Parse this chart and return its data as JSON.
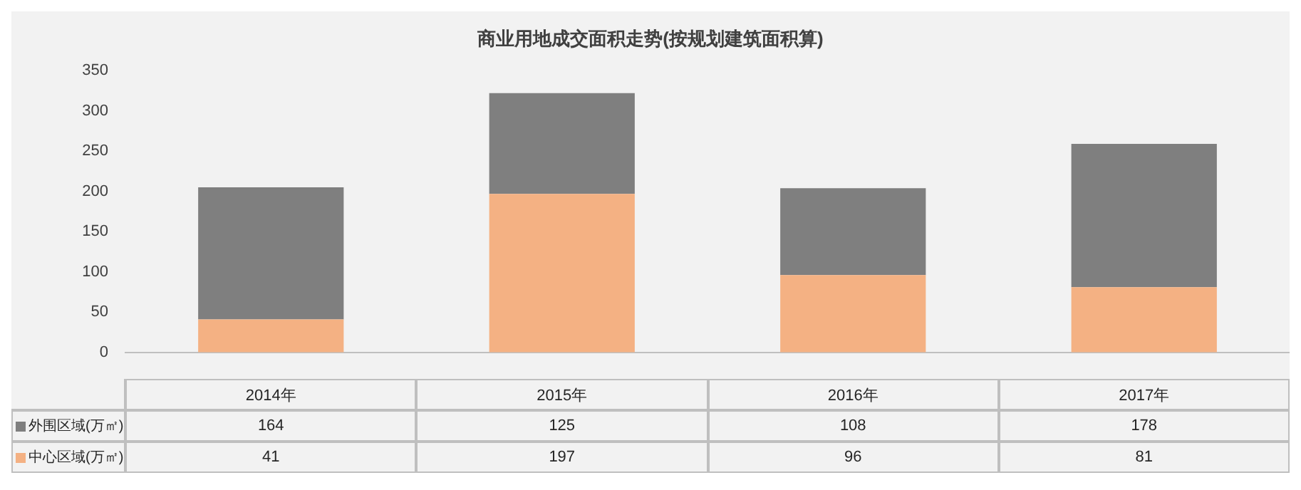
{
  "chart_data": {
    "type": "bar",
    "title": "商业用地成交面积走势(按规划建筑面积算)",
    "categories": [
      "2014年",
      "2015年",
      "2016年",
      "2017年"
    ],
    "series": [
      {
        "name": "中心区域(万㎡)",
        "color": "#f4b183",
        "values": [
          41,
          197,
          96,
          81
        ]
      },
      {
        "name": "外围区域(万㎡)",
        "color": "#7f7f7f",
        "values": [
          164,
          125,
          108,
          178
        ]
      }
    ],
    "stacked": true,
    "ylim": [
      0,
      350
    ],
    "yticks": [
      0,
      50,
      100,
      150,
      200,
      250,
      300,
      350
    ],
    "grid": false,
    "data_labels": true,
    "legend": "bottom"
  }
}
